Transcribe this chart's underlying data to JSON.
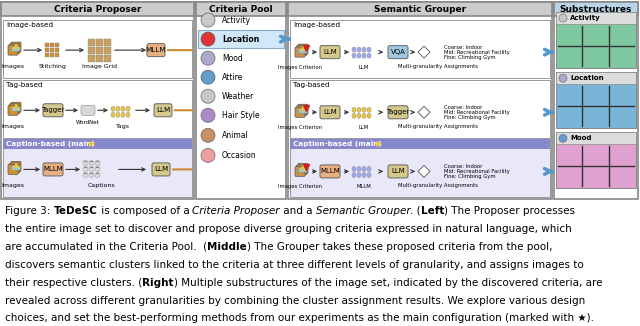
{
  "bg_color": "#ffffff",
  "criteria_proposer_title": "Criteria Proposer",
  "criteria_pool_title": "Criteria Pool",
  "semantic_grouper_title": "Semantic Grouper",
  "substructures_title": "Substructures",
  "pool_items": [
    "Activity",
    "Location",
    "Mood",
    "Attire",
    "Weather",
    "Hair Style",
    "Animal",
    "Occasion"
  ],
  "granularity_labels": [
    "Coarse: Indoor",
    "Mid: Recreational Facility",
    "Fine: Climbing Gym"
  ],
  "substructure_items": [
    "Activity",
    "Location",
    "Mood"
  ],
  "sub_colors": [
    "#7ec8a0",
    "#7ab4d8",
    "#e0a0d0"
  ],
  "sub_title_bg": [
    "#5a9e70",
    "#4a80b0",
    "#b060a0"
  ],
  "panel_header_color": "#b8d4e8",
  "cp_header_color": "#c8c8c8",
  "pool_header_color": "#c8c8c8",
  "sg_header_color": "#c8c8c8",
  "sub_header_color": "#b8d4e8",
  "col_llm": "#d4c98a",
  "col_mllm": "#e8b080",
  "col_vqa": "#a0c8e0",
  "col_tagger": "#d4c98a",
  "col_img": "#c8a060",
  "col_gran": "#e8e8e8",
  "cp_section3_bg": "#d0d0f8",
  "sg_section3_bg": "#d0d0f8",
  "caption_fig": "Figure 3: ",
  "caption_bold1": "TeDeSC",
  "caption_rest1": " is composed of a ",
  "caption_ital1": "Criteria Proposer",
  "caption_rest2": " and a ",
  "caption_ital2": "Semantic Grouper",
  "caption_rest3": ". (",
  "caption_bold2": "Left",
  "caption_rest4": ") The Proposer processes the entire image set to discover and propose diverse grouping criteria expressed in natural language, which are accumulated in the Criteria Pool.  (",
  "caption_bold3": "Middle",
  "caption_rest5": ") The Grouper takes these proposed criteria from the pool, discovers semantic clusters linked to the criteria at three different levels of granularity, and assigns images to their respective clusters. (",
  "caption_bold4": "Right",
  "caption_rest6": ") Multiple substructures of the image set, indicated by the discovered criteria, are revealed across different granularities by combining the cluster assignment results. We explore various design choices, and set the best-performing methods from our experiments as the main configuration (marked with ★).",
  "text_color": "#000000",
  "caption_fontsize": 7.5,
  "title_fontsize": 6.8
}
